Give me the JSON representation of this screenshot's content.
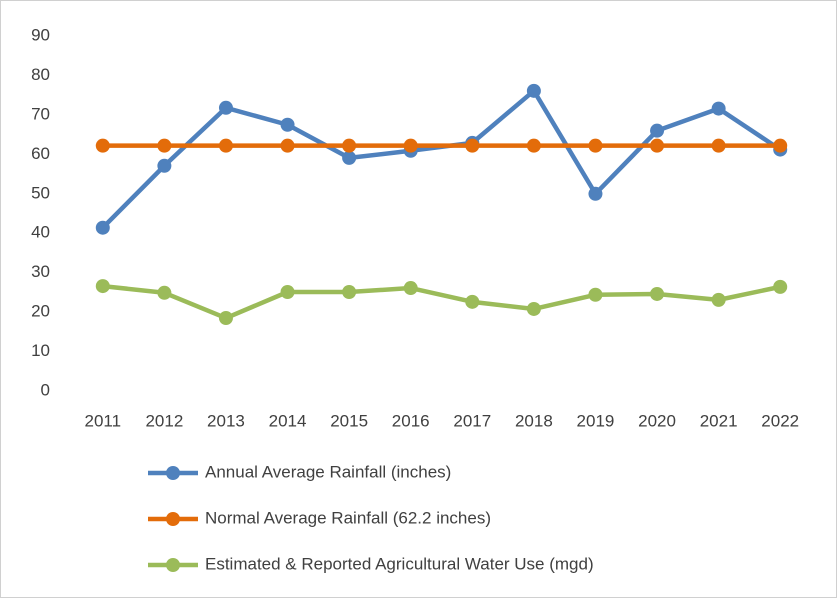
{
  "chart_data": {
    "type": "line",
    "categories": [
      "2011",
      "2012",
      "2013",
      "2014",
      "2015",
      "2016",
      "2017",
      "2018",
      "2019",
      "2020",
      "2021",
      "2022"
    ],
    "series": [
      {
        "name": "Annual Average Rainfall (inches)",
        "color": "#4f81bd",
        "values": [
          41.4,
          57.1,
          71.8,
          67.5,
          59.1,
          60.9,
          62.9,
          76.1,
          50,
          66,
          71.6,
          61.2
        ]
      },
      {
        "name": "Normal Average Rainfall (62.2 inches)",
        "color": "#e36c0a",
        "values": [
          62.2,
          62.2,
          62.2,
          62.2,
          62.2,
          62.2,
          62.2,
          62.2,
          62.2,
          62.2,
          62.2,
          62.2
        ]
      },
      {
        "name": "Estimated & Reported Agricultural Water Use (mgd)",
        "color": "#9bbb59",
        "values": [
          26.6,
          24.9,
          18.5,
          25.1,
          25.1,
          26.1,
          22.6,
          20.8,
          24.4,
          24.6,
          23.1,
          26.4
        ]
      }
    ],
    "ylim": [
      0,
      90
    ],
    "yticks": [
      0,
      10,
      20,
      30,
      40,
      50,
      60,
      70,
      80,
      90
    ],
    "grid": false,
    "legend": "bottom"
  }
}
